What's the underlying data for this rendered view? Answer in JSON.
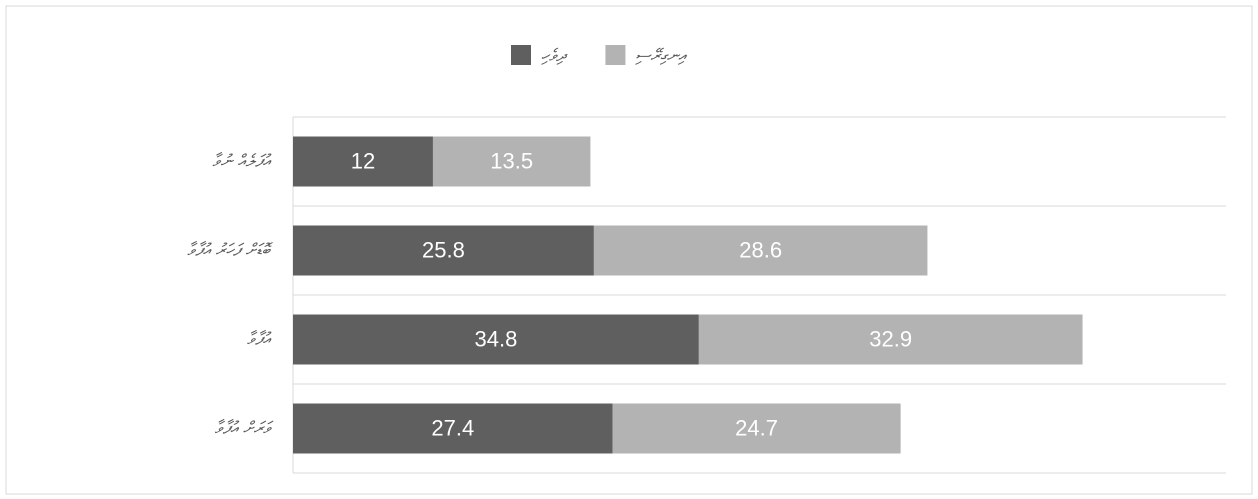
{
  "chart_data": {
    "type": "stacked-hbar",
    "categories": [
      "އުފަލެއް ނުވާ",
      "ބޮޑަށް ފަހަރު އުފާވާ",
      "އުފާވާ",
      "ވަރަށް އުފާވާ"
    ],
    "series": [
      {
        "name": "ދިވެހި",
        "color": "#5f5f5f",
        "values": [
          12,
          25.8,
          34.8,
          27.4
        ]
      },
      {
        "name": "އިނގިރޭސި",
        "color": "#b3b3b3",
        "values": [
          13.5,
          28.6,
          32.9,
          24.7
        ]
      }
    ],
    "xlim": [
      0,
      80
    ],
    "legend": "top"
  }
}
